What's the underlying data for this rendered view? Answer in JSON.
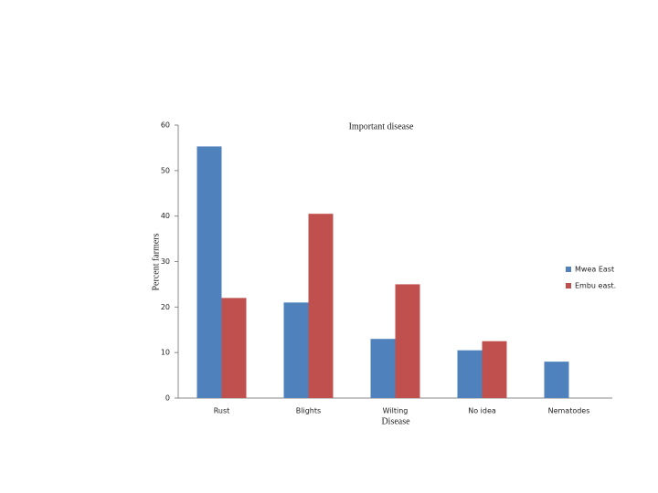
{
  "chart_data": {
    "type": "bar",
    "title": "Important disease",
    "x_label": "Disease",
    "y_label": "Percent farmers",
    "categories": [
      "Rust",
      "Blights",
      "Wilting",
      "No idea",
      "Nematodes"
    ],
    "series": [
      {
        "name": "Mwea East",
        "color": "#4f81bd",
        "values": [
          55.3,
          21,
          13,
          10.5,
          8
        ]
      },
      {
        "name": "Embu east.",
        "color": "#c0504d",
        "values": [
          22,
          40.5,
          25,
          12.5,
          0
        ]
      }
    ],
    "ylim": [
      0,
      60
    ],
    "yticks": [
      0,
      10,
      20,
      30,
      40,
      50,
      60
    ],
    "grid": false,
    "legend": "right"
  }
}
